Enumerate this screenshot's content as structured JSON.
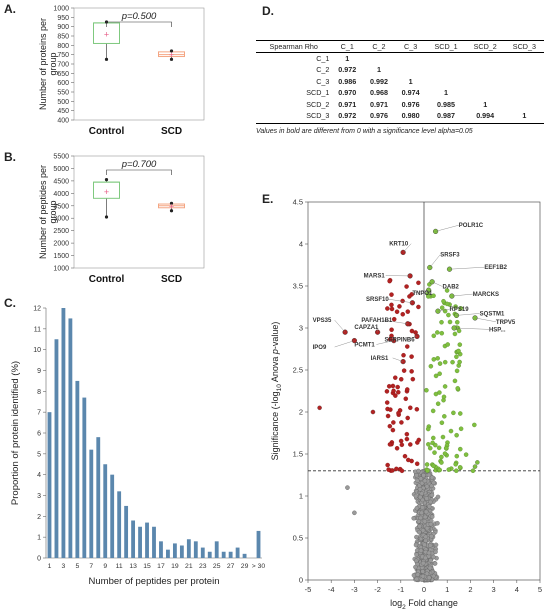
{
  "panels": {
    "a": "A.",
    "b": "B.",
    "c": "C.",
    "d": "D.",
    "e": "E."
  },
  "chart_data": [
    {
      "id": "A",
      "type": "box",
      "ylabel": "Number of proteins per group",
      "ylim": [
        400,
        1000
      ],
      "yticks": [
        400,
        450,
        500,
        550,
        600,
        650,
        700,
        750,
        800,
        850,
        900,
        950,
        1000
      ],
      "categories": [
        "Control",
        "SCD"
      ],
      "annotation": "p=0.500",
      "boxes": [
        {
          "name": "Control",
          "min": 725,
          "q1": 810,
          "median": 920,
          "q3": 920,
          "max": 925,
          "mean": 857,
          "color": "#7fc97f"
        },
        {
          "name": "SCD",
          "min": 725,
          "q1": 740,
          "median": 750,
          "q3": 765,
          "max": 770,
          "mean": 748,
          "color": "#f4a582"
        }
      ]
    },
    {
      "id": "B",
      "type": "box",
      "ylabel": "Number of peptides per group",
      "ylim": [
        1000,
        5500
      ],
      "yticks": [
        1000,
        1500,
        2000,
        2500,
        3000,
        3500,
        4000,
        4500,
        5000,
        5500
      ],
      "categories": [
        "Control",
        "SCD"
      ],
      "annotation": "p=0.700",
      "boxes": [
        {
          "name": "Control",
          "min": 3050,
          "q1": 3800,
          "median": 4450,
          "q3": 4450,
          "max": 4550,
          "mean": 4050,
          "color": "#7fc97f"
        },
        {
          "name": "SCD",
          "min": 3300,
          "q1": 3420,
          "median": 3500,
          "q3": 3570,
          "max": 3600,
          "mean": 3480,
          "color": "#f4a582"
        }
      ]
    },
    {
      "id": "C",
      "type": "bar",
      "xlabel": "Number of peptides per protein",
      "ylabel": "Proportion of protein identified (%)",
      "ylim": [
        0,
        12
      ],
      "yticks": [
        0,
        1,
        2,
        3,
        4,
        5,
        6,
        7,
        8,
        9,
        10,
        11,
        12
      ],
      "categories": [
        "1",
        "2",
        "3",
        "4",
        "5",
        "6",
        "7",
        "8",
        "9",
        "10",
        "11",
        "12",
        "13",
        "14",
        "15",
        "16",
        "17",
        "18",
        "19",
        "20",
        "21",
        "22",
        "23",
        "24",
        "25",
        "26",
        "27",
        "28",
        "29",
        "30",
        "> 30"
      ],
      "xtick_labels": [
        "1",
        "3",
        "5",
        "7",
        "9",
        "11",
        "13",
        "15",
        "17",
        "19",
        "21",
        "23",
        "25",
        "27",
        "29",
        "> 30"
      ],
      "values": [
        7.0,
        10.5,
        12.0,
        11.5,
        8.5,
        7.7,
        5.2,
        5.8,
        4.5,
        4.0,
        3.2,
        2.5,
        1.8,
        1.5,
        1.7,
        1.5,
        0.8,
        0.4,
        0.7,
        0.6,
        0.9,
        0.8,
        0.5,
        0.3,
        0.8,
        0.3,
        0.3,
        0.5,
        0.2,
        0.0,
        1.3
      ],
      "color": "#5b87ad"
    },
    {
      "id": "E",
      "type": "scatter",
      "xlabel_main": "log",
      "xlabel_sub": "2",
      "xlabel_rest": " Fold change",
      "ylabel_pre": "Significance (-log",
      "ylabel_sub": "10",
      "ylabel_mid": " Anova ",
      "ylabel_ital": "p",
      "ylabel_post": "-value)",
      "xlim": [
        -5,
        5
      ],
      "ylim": [
        0,
        4.5
      ],
      "xticks": [
        -5,
        -4,
        -3,
        -2,
        -1,
        0,
        1,
        2,
        3,
        4,
        5
      ],
      "yticks": [
        0,
        0.5,
        1,
        1.5,
        2,
        2.5,
        3,
        3.5,
        4,
        4.5
      ],
      "threshold_y": 1.3,
      "colors": {
        "down": "#b22222",
        "up": "#7fbf3f",
        "ns": "#9a9a9a"
      },
      "labels": [
        {
          "text": "POLR1C",
          "x": 0.5,
          "y": 4.15,
          "tx": 1.5,
          "ty": 4.2,
          "side": "right"
        },
        {
          "text": "KRT10",
          "x": -0.9,
          "y": 3.9,
          "tx": -1.5,
          "ty": 3.98,
          "side": "left"
        },
        {
          "text": "SRSF3",
          "x": 0.25,
          "y": 3.72,
          "tx": 0.7,
          "ty": 3.85,
          "side": "right"
        },
        {
          "text": "EEF1B2",
          "x": 1.1,
          "y": 3.7,
          "tx": 2.6,
          "ty": 3.7,
          "side": "right"
        },
        {
          "text": "MARS1",
          "x": -0.6,
          "y": 3.62,
          "tx": -2.6,
          "ty": 3.6,
          "side": "left"
        },
        {
          "text": "DAB2",
          "x": 0.35,
          "y": 3.55,
          "tx": 0.8,
          "ty": 3.47,
          "side": "right"
        },
        {
          "text": "MARCKS",
          "x": 1.2,
          "y": 3.38,
          "tx": 2.1,
          "ty": 3.38,
          "side": "right"
        },
        {
          "text": "TNPO1",
          "x": 0.2,
          "y": 3.45,
          "tx": -0.5,
          "ty": 3.39,
          "side": "right"
        },
        {
          "text": "SRSF10",
          "x": -0.5,
          "y": 3.3,
          "tx": -2.5,
          "ty": 3.32,
          "side": "left"
        },
        {
          "text": "RPS19",
          "x": 0.6,
          "y": 3.2,
          "tx": 1.1,
          "ty": 3.2,
          "side": "right"
        },
        {
          "text": "SQSTM1",
          "x": 1.4,
          "y": 3.15,
          "tx": 2.4,
          "ty": 3.15,
          "side": "right"
        },
        {
          "text": "TRPV5",
          "x": 2.2,
          "y": 3.12,
          "tx": 3.1,
          "ty": 3.05,
          "side": "right"
        },
        {
          "text": "HSP...",
          "x": 1.3,
          "y": 3.0,
          "tx": 2.8,
          "ty": 2.96,
          "side": "right"
        },
        {
          "text": "PAFAH1B1",
          "x": -0.7,
          "y": 3.05,
          "tx": -2.7,
          "ty": 3.07,
          "side": "left"
        },
        {
          "text": "VPS35",
          "x": -3.4,
          "y": 2.95,
          "tx": -4.8,
          "ty": 3.07,
          "side": "left"
        },
        {
          "text": "CAPZA1",
          "x": -2.0,
          "y": 2.95,
          "tx": -3.0,
          "ty": 2.99,
          "side": "left"
        },
        {
          "text": "PCMT1",
          "x": -1.3,
          "y": 2.85,
          "tx": -3.0,
          "ty": 2.78,
          "side": "left"
        },
        {
          "text": "SERPINB6",
          "x": -0.3,
          "y": 2.9,
          "tx": -1.7,
          "ty": 2.84,
          "side": "left"
        },
        {
          "text": "IPO9",
          "x": -3.0,
          "y": 2.85,
          "tx": -4.8,
          "ty": 2.75,
          "side": "left"
        },
        {
          "text": "IARS1",
          "x": -0.9,
          "y": 2.6,
          "tx": -2.3,
          "ty": 2.62,
          "side": "left"
        }
      ]
    }
  ],
  "table": {
    "header": [
      "Spearman Rho",
      "C_1",
      "C_2",
      "C_3",
      "SCD_1",
      "SCD_2",
      "SCD_3"
    ],
    "rows": [
      {
        "name": "C_1",
        "cells": [
          "1",
          "",
          "",
          "",
          "",
          ""
        ]
      },
      {
        "name": "C_2",
        "cells": [
          "0.972",
          "1",
          "",
          "",
          "",
          ""
        ]
      },
      {
        "name": "C_3",
        "cells": [
          "0.986",
          "0.992",
          "1",
          "",
          "",
          ""
        ]
      },
      {
        "name": "SCD_1",
        "cells": [
          "0.970",
          "0.968",
          "0.974",
          "1",
          "",
          ""
        ]
      },
      {
        "name": "SCD_2",
        "cells": [
          "0.971",
          "0.971",
          "0.976",
          "0.985",
          "1",
          ""
        ]
      },
      {
        "name": "SCD_3",
        "cells": [
          "0.972",
          "0.976",
          "0.980",
          "0.987",
          "0.994",
          "1"
        ]
      }
    ],
    "note": "Values in bold are different from 0 with a significance level alpha=0.05"
  }
}
